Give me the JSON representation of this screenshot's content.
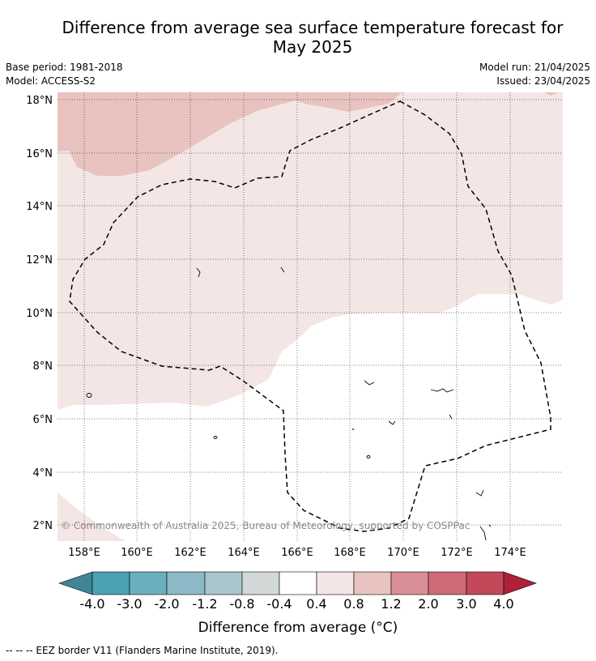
{
  "title_line1": "Difference from average sea surface temperature forecast for",
  "title_line2": "May 2025",
  "meta_left": [
    "Base period: 1981-2018",
    "Model: ACCESS-S2"
  ],
  "meta_right": [
    "Model run: 21/04/2025",
    "Issued: 23/04/2025"
  ],
  "copyright": "© Commonwealth of Australia 2025, Bureau of Meteorology, supported by COSPPac",
  "colorbar": {
    "label": "Difference from average (°C)",
    "tick_labels": [
      "-4.0",
      "-3.0",
      "-2.0",
      "-1.2",
      "-0.8",
      "-0.4",
      "0.4",
      "0.8",
      "1.2",
      "2.0",
      "3.0",
      "4.0"
    ],
    "colors": [
      "#4aa2b4",
      "#6aafbe",
      "#8bbac6",
      "#a9c6cc",
      "#d2d8d8",
      "#ffffff",
      "#f4e6e4",
      "#e8c3c0",
      "#da8e96",
      "#cf6a77",
      "#c2485a"
    ],
    "under_color": "#3f8593",
    "over_color": "#b02139"
  },
  "map": {
    "lon_labels": [
      "158°E",
      "160°E",
      "162°E",
      "164°E",
      "166°E",
      "168°E",
      "170°E",
      "172°E",
      "174°E"
    ],
    "lat_labels": [
      "2°N",
      "4°N",
      "6°N",
      "8°N",
      "10°N",
      "12°N",
      "14°N",
      "16°N",
      "18°N"
    ],
    "fill_colors": {
      "light": "#f4e6e4",
      "medium": "#e8c3c0"
    }
  },
  "legend_note": "--  --  -- EEZ border V11 (Flanders Marine Institute, 2019)."
}
